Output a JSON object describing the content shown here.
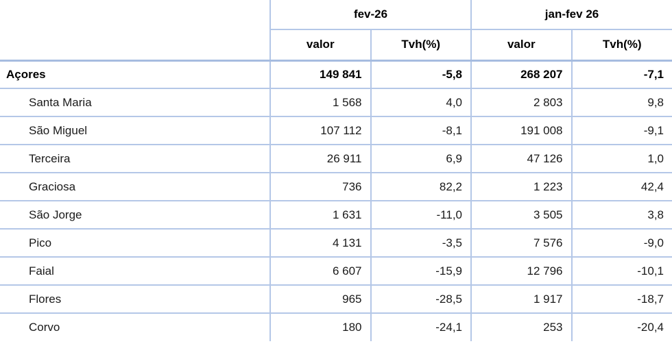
{
  "table": {
    "title": "",
    "column_groups": [
      {
        "label": "fev-26",
        "columns": [
          "valor",
          "Tvh(%)"
        ]
      },
      {
        "label": "jan-fev 26",
        "columns": [
          "valor",
          "Tvh(%)"
        ]
      }
    ],
    "rows": [
      {
        "label": "Açores",
        "bold": true,
        "values": [
          "149 841",
          "-5,8",
          "268 207",
          "-7,1"
        ]
      },
      {
        "label": "Santa Maria",
        "bold": false,
        "values": [
          "1 568",
          "4,0",
          "2 803",
          "9,8"
        ]
      },
      {
        "label": "São Miguel",
        "bold": false,
        "values": [
          "107 112",
          "-8,1",
          "191 008",
          "-9,1"
        ]
      },
      {
        "label": "Terceira",
        "bold": false,
        "values": [
          "26 911",
          "6,9",
          "47 126",
          "1,0"
        ]
      },
      {
        "label": "Graciosa",
        "bold": false,
        "values": [
          "736",
          "82,2",
          "1 223",
          "42,4"
        ]
      },
      {
        "label": "São Jorge",
        "bold": false,
        "values": [
          "1 631",
          "-11,0",
          "3 505",
          "3,8"
        ]
      },
      {
        "label": "Pico",
        "bold": false,
        "values": [
          "4 131",
          "-3,5",
          "7 576",
          "-9,0"
        ]
      },
      {
        "label": "Faial",
        "bold": false,
        "values": [
          "6 607",
          "-15,9",
          "12 796",
          "-10,1"
        ]
      },
      {
        "label": "Flores",
        "bold": false,
        "values": [
          "965",
          "-28,5",
          "1 917",
          "-18,7"
        ]
      },
      {
        "label": "Corvo",
        "bold": false,
        "values": [
          "180",
          "-24,1",
          "253",
          "-20,4"
        ]
      }
    ],
    "colors": {
      "border": "#b4c7e7",
      "border_heavy": "#a6bce0",
      "text": "#1a1a1a",
      "text_bold": "#000000",
      "background": "#ffffff"
    }
  }
}
